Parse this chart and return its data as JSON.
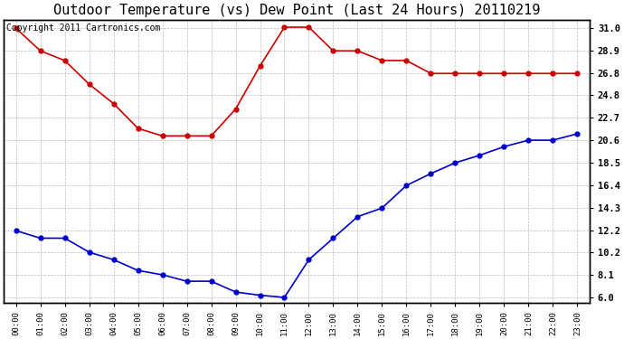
{
  "title": "Outdoor Temperature (vs) Dew Point (Last 24 Hours) 20110219",
  "copyright": "Copyright 2011 Cartronics.com",
  "x_labels": [
    "00:00",
    "01:00",
    "02:00",
    "03:00",
    "04:00",
    "05:00",
    "06:00",
    "07:00",
    "08:00",
    "09:00",
    "10:00",
    "11:00",
    "12:00",
    "13:00",
    "14:00",
    "15:00",
    "16:00",
    "17:00",
    "18:00",
    "19:00",
    "20:00",
    "21:00",
    "22:00",
    "23:00"
  ],
  "temp_values": [
    31.0,
    28.9,
    28.0,
    25.8,
    24.0,
    21.7,
    21.0,
    21.0,
    21.0,
    23.5,
    27.5,
    31.1,
    31.1,
    28.9,
    28.9,
    28.0,
    28.0,
    26.8,
    26.8,
    26.8,
    26.8,
    26.8,
    26.8,
    26.8
  ],
  "dew_values": [
    12.2,
    11.5,
    11.5,
    10.2,
    9.5,
    8.5,
    8.1,
    7.5,
    7.5,
    6.5,
    6.2,
    6.0,
    9.5,
    11.5,
    13.5,
    14.3,
    16.4,
    17.5,
    18.5,
    19.2,
    20.0,
    20.6,
    20.6,
    21.2
  ],
  "temp_color": "#cc0000",
  "dew_color": "#0000cc",
  "yticks": [
    6.0,
    8.1,
    10.2,
    12.2,
    14.3,
    16.4,
    18.5,
    20.6,
    22.7,
    24.8,
    26.8,
    28.9,
    31.0
  ],
  "ymin": 5.5,
  "ymax": 31.8,
  "bg_color": "#ffffff",
  "plot_bg_color": "#ffffff",
  "grid_color": "#bbbbbb",
  "title_fontsize": 11,
  "copyright_fontsize": 7
}
